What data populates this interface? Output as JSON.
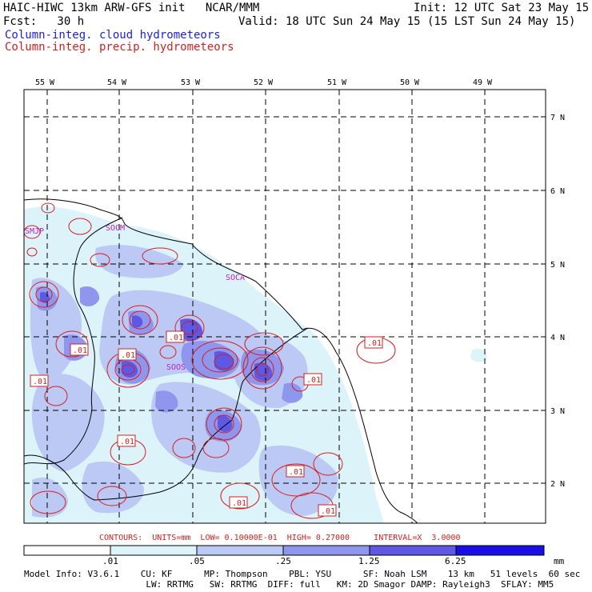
{
  "header": {
    "line1": "HAIC-HIWC 13km ARW-GFS init   NCAR/MMM",
    "line2": "Fcst:   30 h",
    "line3": "Column-integ. cloud hydrometeors",
    "line4": "Column-integ. precip. hydrometeors",
    "init": "Init: 12 UTC Sat 23 May 15",
    "valid": "Valid: 18 UTC Sun 24 May 15 (15 LST Sun 24 May 15)"
  },
  "colors": {
    "cloud_text": "#1f1fd6",
    "precip_text": "#d61f1f",
    "shade_1": "#ddf3fa",
    "shade_2": "#bcc9f5",
    "shade_3": "#8f96ee",
    "shade_4": "#5e58e4",
    "shade_5": "#1a0ee6"
  },
  "map": {
    "longitudes": [
      "55 W",
      "54 W",
      "53 W",
      "52 W",
      "51 W",
      "50 W",
      "49 W"
    ],
    "latitudes": [
      "7 N",
      "6 N",
      "5 N",
      "4 N",
      "3 N",
      "2 N"
    ],
    "stations": [
      "SMJP",
      "SOCM",
      "SOCA",
      "SOOS"
    ],
    "contour_labels": [
      ".01",
      ".01",
      ".01",
      ".01",
      ".01",
      ".01",
      ".01",
      ".01",
      ".01",
      ".01"
    ]
  },
  "contours_info": "CONTOURS:  UNITS=mm  LOW= 0.10000E-01  HIGH= 0.27000     INTERVAL=X  3.0000",
  "colorbar": {
    "ticks": [
      ".01",
      ".05",
      ".25",
      "1.25",
      "6.25"
    ],
    "units": "mm"
  },
  "footer": {
    "line1": "Model Info: V3.6.1    CU: KF      MP: Thompson    PBL: YSU      SF: Noah LSM    13 km   51 levels  60 sec",
    "line2": "                       LW: RRTMG   SW: RRTMG  DIFF: full   KM: 2D Smagor DAMP: Rayleigh3  SFLAY: MM5"
  }
}
